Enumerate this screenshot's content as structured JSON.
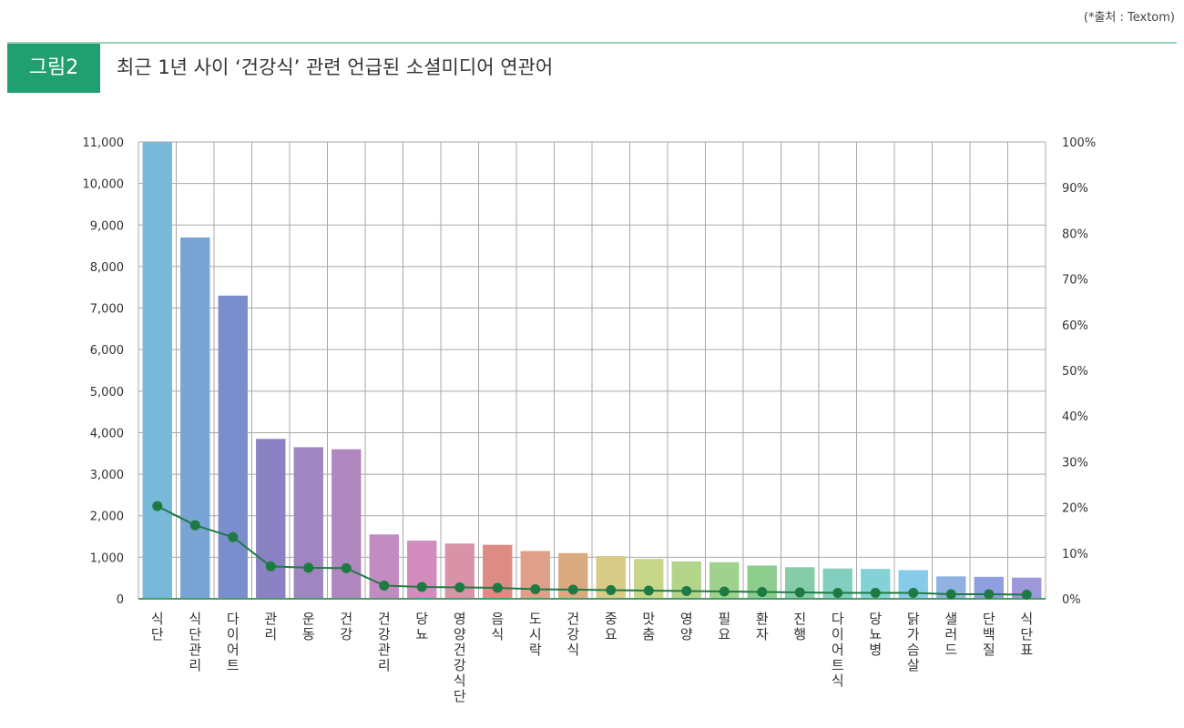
{
  "header": {
    "source": "(*출처 : Textom)",
    "figure_label": "그림2",
    "title": "최근 1년 사이 ‘건강식’ 관련 언급된 소셜미디어 연관어"
  },
  "chart_data": {
    "type": "bar",
    "categories": [
      "식단",
      "식단관리",
      "다이어트",
      "관리",
      "운동",
      "건강",
      "건강관리",
      "당뇨",
      "영양건강식단",
      "음식",
      "도시락",
      "건강식",
      "중요",
      "맛춤",
      "영양",
      "필요",
      "환자",
      "진행",
      "다이어트식",
      "당뇨병",
      "닭가슴살",
      "샐러드",
      "단백질",
      "식단표"
    ],
    "series": [
      {
        "type": "bar",
        "values": [
          11000,
          8700,
          7300,
          3850,
          3650,
          3600,
          1550,
          1400,
          1330,
          1300,
          1150,
          1100,
          1030,
          960,
          900,
          880,
          800,
          760,
          730,
          720,
          690,
          540,
          530,
          510
        ]
      },
      {
        "type": "line",
        "axis": "right",
        "values": [
          20.3,
          16.1,
          13.5,
          7.1,
          6.8,
          6.7,
          2.9,
          2.6,
          2.5,
          2.4,
          2.1,
          2.0,
          1.9,
          1.8,
          1.7,
          1.6,
          1.5,
          1.4,
          1.3,
          1.3,
          1.3,
          1.0,
          1.0,
          0.9
        ]
      }
    ],
    "left_ticks": [
      "0",
      "1,000",
      "2,000",
      "3,000",
      "4,000",
      "5,000",
      "6,000",
      "7,000",
      "8,000",
      "9,000",
      "10,000",
      "11,000"
    ],
    "right_ticks": [
      "0%",
      "10%",
      "20%",
      "30%",
      "40%",
      "50%",
      "60%",
      "70%",
      "80%",
      "90%",
      "100%"
    ],
    "ylim": [
      0,
      11000
    ],
    "y2lim": [
      0,
      100
    ],
    "grid": true,
    "line_color": "#1e7a43",
    "bar_colors": [
      "#78b8d8",
      "#79a4d6",
      "#7a8dcc",
      "#8a82c2",
      "#9f86c0",
      "#b187bf",
      "#c28bc2",
      "#d18bbd",
      "#d893a8",
      "#de8b84",
      "#dea08a",
      "#d9aa80",
      "#d8cb88",
      "#c8d68a",
      "#b3d58a",
      "#9fd28c",
      "#8ccd8e",
      "#85cca9",
      "#82cfc0",
      "#84d2d6",
      "#88cbe8",
      "#8fb2e2",
      "#8e9ede",
      "#9c98db"
    ]
  }
}
